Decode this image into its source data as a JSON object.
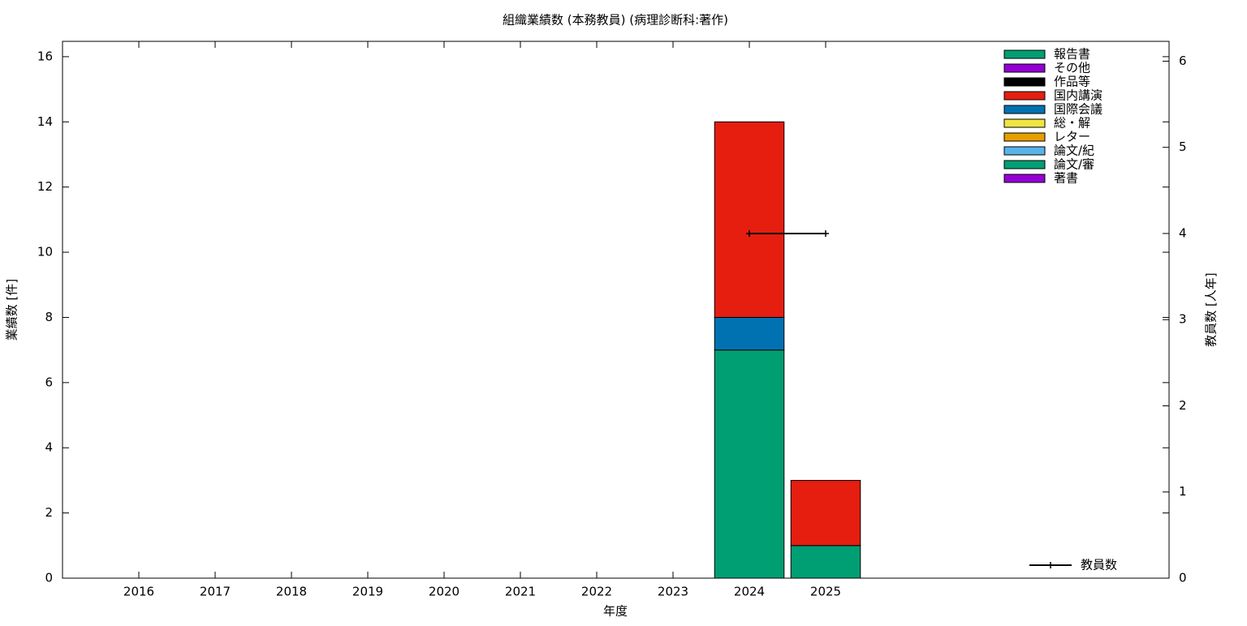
{
  "chart_data": {
    "type": "bar",
    "stacked": true,
    "title": "組織業績数 (本務教員) (病理診断科:著作)",
    "x_label": "年度",
    "y_label": "業績数 [件]",
    "y2_label": "教員数 [人年]",
    "x": [
      2016,
      2017,
      2018,
      2019,
      2020,
      2021,
      2022,
      2023,
      2024,
      2025
    ],
    "xlim": [
      2015,
      2029.5
    ],
    "xticks": [
      2016,
      2017,
      2018,
      2019,
      2020,
      2021,
      2022,
      2023,
      2024,
      2025
    ],
    "ylim": [
      0,
      16.47
    ],
    "yticks": [
      0,
      2,
      4,
      6,
      8,
      10,
      12,
      14,
      16
    ],
    "y2lim": [
      0,
      6.23
    ],
    "y2ticks": [
      0,
      1,
      2,
      3,
      4,
      5,
      6
    ],
    "legend_position": "top-right",
    "series": [
      {
        "name": "報告書",
        "color": "#009e73",
        "values": [
          0,
          0,
          0,
          0,
          0,
          0,
          0,
          0,
          0,
          0
        ]
      },
      {
        "name": "その他",
        "color": "#9400d3",
        "values": [
          0,
          0,
          0,
          0,
          0,
          0,
          0,
          0,
          0,
          0
        ]
      },
      {
        "name": "作品等",
        "color": "#000000",
        "values": [
          0,
          0,
          0,
          0,
          0,
          0,
          0,
          0,
          0,
          0
        ]
      },
      {
        "name": "国内講演",
        "color": "#e51e10",
        "values": [
          0,
          0,
          0,
          0,
          0,
          0,
          0,
          0,
          6,
          2
        ]
      },
      {
        "name": "国際会議",
        "color": "#0072b2",
        "values": [
          0,
          0,
          0,
          0,
          0,
          0,
          0,
          0,
          1,
          0
        ]
      },
      {
        "name": "総・解",
        "color": "#f0e442",
        "values": [
          0,
          0,
          0,
          0,
          0,
          0,
          0,
          0,
          0,
          0
        ]
      },
      {
        "name": "レター",
        "color": "#e69f00",
        "values": [
          0,
          0,
          0,
          0,
          0,
          0,
          0,
          0,
          0,
          0
        ]
      },
      {
        "name": "論文/紀",
        "color": "#56b4e9",
        "values": [
          0,
          0,
          0,
          0,
          0,
          0,
          0,
          0,
          0,
          0
        ]
      },
      {
        "name": "論文/審",
        "color": "#009e73",
        "values": [
          0,
          0,
          0,
          0,
          0,
          0,
          0,
          0,
          7,
          1
        ]
      },
      {
        "name": "著書",
        "color": "#9400d3",
        "values": [
          0,
          0,
          0,
          0,
          0,
          0,
          0,
          0,
          0,
          0
        ]
      },
      {
        "name": "教員数",
        "type": "line",
        "axis": "y2",
        "color": "#000000",
        "values": [
          null,
          null,
          null,
          null,
          null,
          null,
          null,
          null,
          4,
          4
        ]
      }
    ]
  }
}
